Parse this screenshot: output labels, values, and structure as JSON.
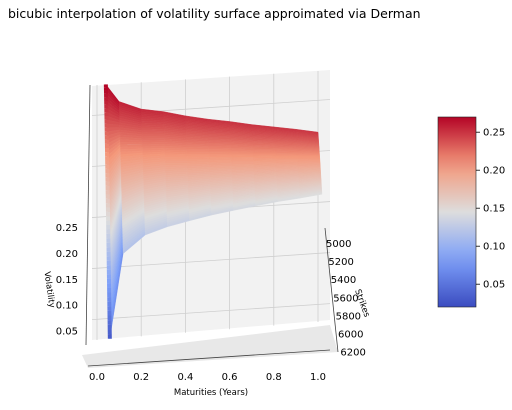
{
  "chart_data": {
    "type": "surface",
    "title": "bicubic interpolation of volatility surface approimated via Derman",
    "xlabel": "Maturities (Years)",
    "ylabel": "Strikes",
    "zlabel": "Volatility",
    "x_ticks": [
      "0.0",
      "0.2",
      "0.4",
      "0.6",
      "0.8",
      "1.0"
    ],
    "y_ticks": [
      "5000",
      "5200",
      "5400",
      "5600",
      "5800",
      "6000",
      "6200"
    ],
    "z_ticks": [
      "0.05",
      "0.10",
      "0.15",
      "0.20",
      "0.25"
    ],
    "colorbar_ticks": [
      "0.05",
      "0.10",
      "0.15",
      "0.20",
      "0.25"
    ],
    "colormap": "coolwarm",
    "colorbar_range": [
      0.02,
      0.27
    ],
    "xlim": [
      -0.05,
      1.05
    ],
    "ylim": [
      4800,
      6200
    ],
    "zlim": [
      0.03,
      0.3
    ],
    "maturities": [
      0.04,
      0.1,
      0.2,
      0.3,
      0.4,
      0.5,
      0.6,
      0.7,
      0.8,
      0.9,
      1.0
    ],
    "strikes": [
      4900,
      5000,
      5100,
      5200,
      5300,
      5400,
      5500,
      5600,
      5700,
      5800,
      5900,
      6000,
      6100
    ],
    "surface_approx": {
      "vol_at_low_strike_by_maturity": [
        0.275,
        0.26,
        0.255,
        0.255,
        0.253,
        0.252,
        0.252,
        0.251,
        0.251,
        0.251,
        0.25
      ],
      "vol_at_high_strike_by_maturity": [
        0.03,
        0.11,
        0.125,
        0.13,
        0.133,
        0.136,
        0.138,
        0.14,
        0.142,
        0.143,
        0.145
      ]
    }
  }
}
